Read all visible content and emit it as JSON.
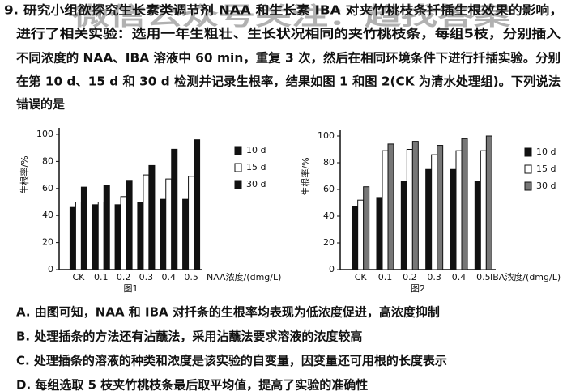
{
  "question": {
    "lines": [
      "9. 研究小组欲探究生长素类调节剂 NAA 和生长素 IBA 对夹竹桃枝条扦插生根效果的影响，",
      "进行了相关实验：选用一年生粗壮、生长状况相同的夹竹桃枝条，每组5枝，分别插入",
      "不同浓度的 NAA、IBA 溶液中 60 min，重复 3 次，然后在相同环境条件下进行扦插实验。分别",
      "在第 10 d、15 d 和 30 d 检测并记录生根率，结果如图 1 和图 2(CK 为清水处理组)。下列说法",
      "错误的是"
    ]
  },
  "watermark": "微信公众号关注：趋找答案",
  "chart_data": [
    {
      "type": "bar",
      "caption": "图1",
      "y_label": "生根率/%",
      "x_label": "NAA浓度/(dmg/L)",
      "categories": [
        "CK",
        "0.1",
        "0.2",
        "0.3",
        "0.4",
        "0.5"
      ],
      "series": [
        {
          "name": "10 d",
          "color": "#111111",
          "values": [
            46,
            48,
            48,
            50,
            52,
            52
          ]
        },
        {
          "name": "15 d",
          "color": "#ffffff",
          "values": [
            50,
            50,
            54,
            70,
            67,
            69
          ]
        },
        {
          "name": "30 d",
          "color": "#111111",
          "values": [
            61,
            62,
            66,
            77,
            89,
            96
          ]
        }
      ],
      "ylim": [
        0,
        100
      ],
      "yticks": [
        0,
        20,
        40,
        60,
        80,
        100
      ]
    },
    {
      "type": "bar",
      "caption": "图2",
      "y_label": "生根率/%",
      "x_label": "IBA浓度/(dmg/L)",
      "categories": [
        "CK",
        "0.1",
        "0.2",
        "0.3",
        "0.4",
        "0.5"
      ],
      "series": [
        {
          "name": "10 d",
          "color": "#111111",
          "values": [
            47,
            54,
            66,
            75,
            75,
            66
          ]
        },
        {
          "name": "15 d",
          "color": "#ffffff",
          "values": [
            52,
            89,
            90,
            86,
            89,
            89
          ]
        },
        {
          "name": "30 d",
          "color": "#777777",
          "values": [
            62,
            94,
            96,
            93,
            98,
            100
          ]
        }
      ],
      "ylim": [
        0,
        100
      ],
      "yticks": [
        0,
        20,
        40,
        60,
        80,
        100
      ]
    }
  ],
  "options": [
    "A. 由图可知，NAA 和 IBA 对扦条的生根率均表现为低浓度促进，高浓度抑制",
    "B. 处理插条的方法还有沾蘸法，采用沾蘸法要求溶液的浓度较高",
    "C. 处理插条的溶液的种类和浓度是该实验的自变量，因变量还可用根的长度表示",
    "D. 每组选取 5 枝夹竹桃枝条最后取平均值，提高了实验的准确性"
  ]
}
